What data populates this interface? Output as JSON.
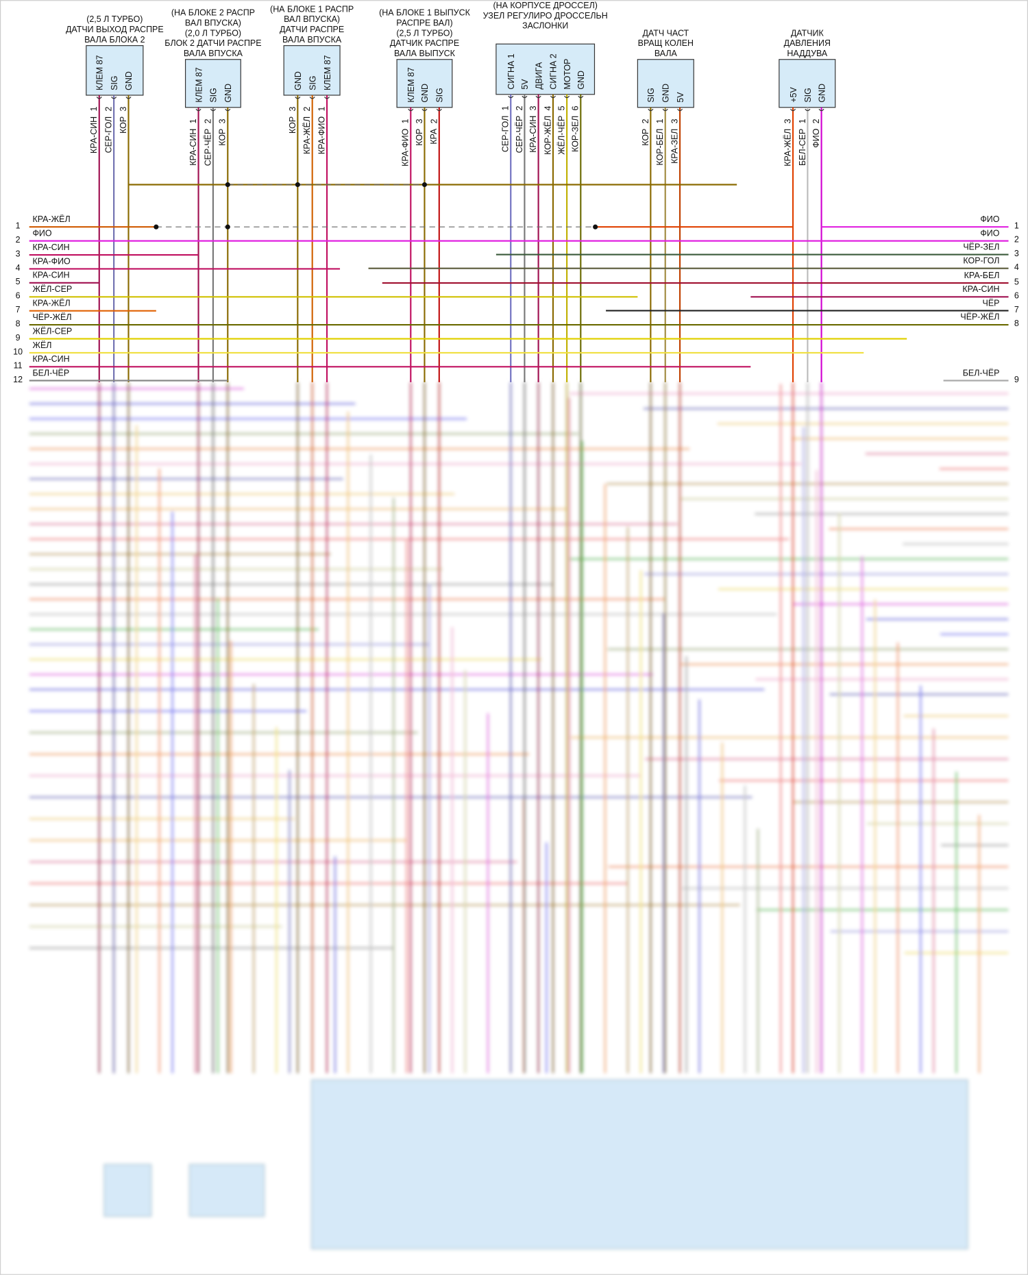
{
  "connectors": [
    {
      "title": [
        "(2,5 Л ТУРБО)",
        "ДАТЧИ ВЫХОД РАСПРЕ",
        "ВАЛА БЛОКА 2"
      ],
      "pins": [
        "КЛЕМ 87",
        "SIG",
        "GND"
      ],
      "wires": [
        {
          "num": "1",
          "color": "КРА-СИН"
        },
        {
          "num": "2",
          "color": "СЕР-ГОЛ"
        },
        {
          "num": "3",
          "color": "КОР"
        }
      ]
    },
    {
      "title": [
        "(НА БЛОКЕ 2 РАСПР",
        "ВАЛ ВПУСКА)",
        "(2,0 Л ТУРБО)",
        "БЛОК 2 ДАТЧИ РАСПРЕ",
        "ВАЛА ВПУСКА"
      ],
      "pins": [
        "КЛЕМ 87",
        "SIG",
        "GND"
      ],
      "wires": [
        {
          "num": "1",
          "color": "КРА-СИН"
        },
        {
          "num": "2",
          "color": "СЕР-ЧЁР"
        },
        {
          "num": "3",
          "color": "КОР"
        }
      ]
    },
    {
      "title": [
        "(НА БЛОКЕ 1 РАСПР",
        "ВАЛ ВПУСКА)",
        "ДАТЧИ РАСПРЕ",
        "ВАЛА ВПУСКА"
      ],
      "pins": [
        "GND",
        "SIG",
        "КЛЕМ 87"
      ],
      "wires": [
        {
          "num": "3",
          "color": "КОР"
        },
        {
          "num": "2",
          "color": "КРА-ЖЁЛ"
        },
        {
          "num": "1",
          "color": "КРА-ФИО"
        }
      ]
    },
    {
      "title": [
        "(НА БЛОКЕ 1 ВЫПУСК",
        "РАСПРЕ ВАЛ)",
        "(2,5 Л ТУРБО)",
        "ДАТЧИК РАСПРЕ",
        "ВАЛА ВЫПУСК"
      ],
      "pins": [
        "КЛЕМ 87",
        "GND",
        "SIG"
      ],
      "wires": [
        {
          "num": "1",
          "color": "КРА-ФИО"
        },
        {
          "num": "3",
          "color": "КОР"
        },
        {
          "num": "2",
          "color": "КРА"
        }
      ]
    },
    {
      "title": [
        "(НА КОРПУСЕ ДРОССЕЛ)",
        "УЗЕЛ РЕГУЛИРО ДРОССЕЛЬН",
        "ЗАСЛОНКИ"
      ],
      "pins": [
        "СИГНА 1",
        "5V",
        "ДВИГА",
        "СИГНА 2",
        "МОТОР",
        "GND"
      ],
      "wires": [
        {
          "num": "1",
          "color": "СЕР-ГОЛ"
        },
        {
          "num": "2",
          "color": "СЕР-ЧЁР"
        },
        {
          "num": "3",
          "color": "КРА-СИН"
        },
        {
          "num": "4",
          "color": "КОР-ЖЁЛ"
        },
        {
          "num": "5",
          "color": "ЖЁЛ-ЧЁР"
        },
        {
          "num": "6",
          "color": "КОР-ЗЕЛ"
        }
      ]
    },
    {
      "title": [
        "ДАТЧ ЧАСТ",
        "ВРАЩ КОЛЕН",
        "ВАЛА"
      ],
      "pins": [
        "SIG",
        "GND",
        "5V"
      ],
      "wires": [
        {
          "num": "2",
          "color": "КОР"
        },
        {
          "num": "1",
          "color": "КОР-БЕЛ"
        },
        {
          "num": "3",
          "color": "КРА-ЗЕЛ"
        }
      ]
    },
    {
      "title": [
        "ДАТЧИК",
        "ДАВЛЕНИЯ",
        "НАДДУВА"
      ],
      "pins": [
        "+5V",
        "SIG",
        "GND"
      ],
      "wires": [
        {
          "num": "3",
          "color": "КРА-ЖЁЛ"
        },
        {
          "num": "1",
          "color": "БЕЛ-СЕР"
        },
        {
          "num": "2",
          "color": "ФИО"
        }
      ]
    }
  ],
  "left_rows": [
    {
      "num": "1",
      "color": "КРА-ЖЁЛ"
    },
    {
      "num": "2",
      "color": "ФИО"
    },
    {
      "num": "3",
      "color": "КРА-СИН"
    },
    {
      "num": "4",
      "color": "КРА-ФИО"
    },
    {
      "num": "5",
      "color": "КРА-СИН"
    },
    {
      "num": "6",
      "color": "ЖЁЛ-СЕР"
    },
    {
      "num": "7",
      "color": "КРА-ЖЁЛ"
    },
    {
      "num": "8",
      "color": "ЧЁР-ЖЁЛ"
    },
    {
      "num": "9",
      "color": "ЖЁЛ-СЕР"
    },
    {
      "num": "10",
      "color": "ЖЁЛ"
    },
    {
      "num": "11",
      "color": "КРА-СИН"
    },
    {
      "num": "12",
      "color": "БЕЛ-ЧЁР"
    }
  ],
  "right_rows": [
    {
      "num": "1",
      "color": "ФИО"
    },
    {
      "num": "2",
      "color": "ФИО"
    },
    {
      "num": "3",
      "color": "ЧЁР-ЗЕЛ"
    },
    {
      "num": "4",
      "color": "КОР-ГОЛ"
    },
    {
      "num": "5",
      "color": "КРА-БЕЛ"
    },
    {
      "num": "6",
      "color": "КРА-СИН"
    },
    {
      "num": "7",
      "color": "ЧЁР"
    },
    {
      "num": "8",
      "color": "ЧЁР-ЖЁЛ"
    },
    {
      "num": "9",
      "color": "БЕЛ-ЧЁР"
    }
  ]
}
